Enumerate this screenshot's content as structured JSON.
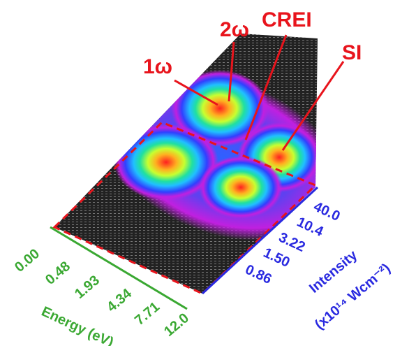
{
  "annotations": {
    "one_omega": "1ω",
    "two_omega": "2ω",
    "crei": "CREI",
    "si": "SI"
  },
  "energy_axis": {
    "title": "Energy (eV)",
    "ticks": [
      "0.00",
      "0.48",
      "1.93",
      "4.34",
      "7.71",
      "12.0"
    ]
  },
  "intensity_axis": {
    "title": "Intensity",
    "unit": "(x10¹⁴ Wcm⁻²)",
    "ticks": [
      "40.0",
      "10.4",
      "3.22",
      "1.50",
      "0.86"
    ]
  }
}
